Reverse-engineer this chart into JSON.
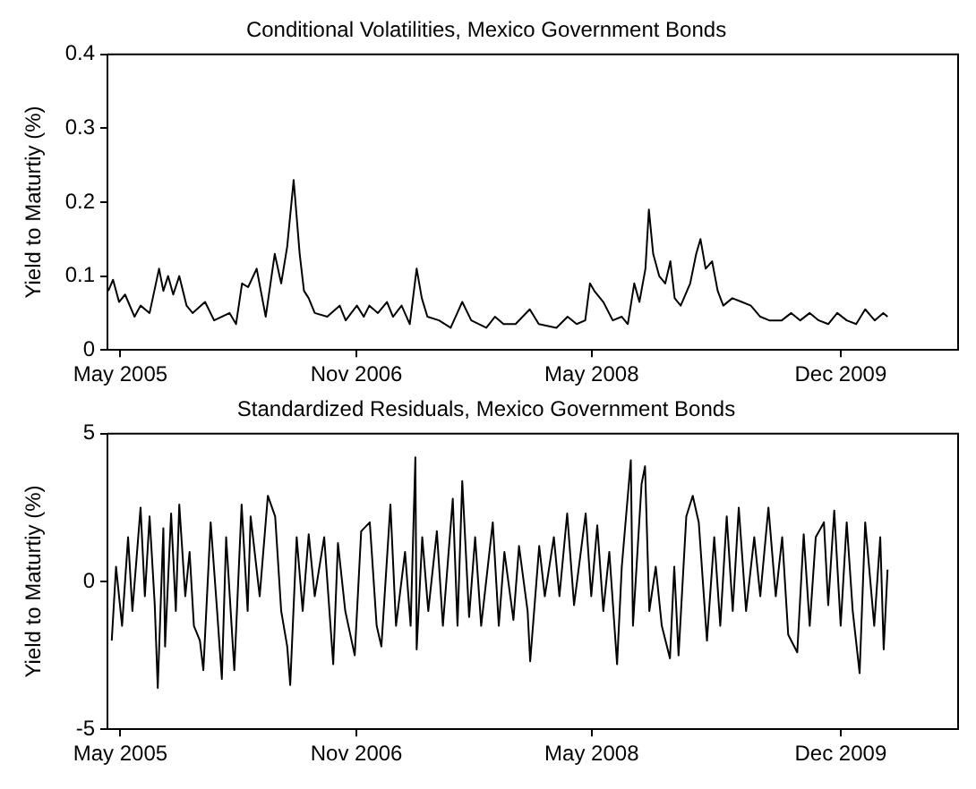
{
  "chart_data": [
    {
      "type": "line",
      "title": "Conditional Volatilities, Mexico Government Bonds",
      "ylabel": "Yield to Maturtiy (%)",
      "x": [
        "2005-04-03",
        "2005-04-14",
        "2005-04-28",
        "2005-05-12",
        "2005-06-03",
        "2005-06-17",
        "2005-07-08",
        "2005-07-30",
        "2005-08-09",
        "2005-08-20",
        "2005-09-01",
        "2005-09-15",
        "2005-10-02",
        "2005-10-16",
        "2005-11-14",
        "2005-12-05",
        "2006-01-10",
        "2006-01-25",
        "2006-02-08",
        "2006-02-22",
        "2006-03-14",
        "2006-04-04",
        "2006-04-25",
        "2006-05-10",
        "2006-05-24",
        "2006-06-08",
        "2006-06-22",
        "2006-07-02",
        "2006-07-13",
        "2006-07-27",
        "2006-08-25",
        "2006-09-23",
        "2006-10-07",
        "2006-11-02",
        "2006-11-18",
        "2006-12-01",
        "2006-12-21",
        "2007-01-11",
        "2007-01-25",
        "2007-02-14",
        "2007-03-05",
        "2007-03-21",
        "2007-04-02",
        "2007-04-15",
        "2007-05-12",
        "2007-06-08",
        "2007-07-05",
        "2007-07-26",
        "2007-08-30",
        "2007-09-19",
        "2007-10-09",
        "2007-11-06",
        "2007-12-09",
        "2007-12-30",
        "2008-02-09",
        "2008-03-06",
        "2008-03-27",
        "2008-04-16",
        "2008-04-27",
        "2008-05-07",
        "2008-05-28",
        "2008-06-19",
        "2008-07-10",
        "2008-07-24",
        "2008-08-08",
        "2008-08-20",
        "2008-09-03",
        "2008-09-11",
        "2008-09-21",
        "2008-10-05",
        "2008-10-19",
        "2008-10-31",
        "2008-11-10",
        "2008-11-24",
        "2008-12-16",
        "2008-12-30",
        "2009-01-09",
        "2009-01-21",
        "2009-02-05",
        "2009-02-18",
        "2009-03-03",
        "2009-03-24",
        "2009-04-15",
        "2009-05-06",
        "2009-05-28",
        "2009-06-18",
        "2009-07-17",
        "2009-08-08",
        "2009-08-29",
        "2009-09-20",
        "2009-10-11",
        "2009-11-02",
        "2009-11-23",
        "2009-12-15",
        "2010-01-06",
        "2010-01-27",
        "2010-02-18",
        "2010-03-10",
        "2010-03-20"
      ],
      "series": [
        {
          "color": "#000000",
          "values": [
            0.08,
            0.095,
            0.065,
            0.075,
            0.045,
            0.06,
            0.05,
            0.11,
            0.08,
            0.1,
            0.075,
            0.1,
            0.06,
            0.05,
            0.065,
            0.04,
            0.05,
            0.035,
            0.09,
            0.085,
            0.11,
            0.045,
            0.13,
            0.09,
            0.14,
            0.23,
            0.13,
            0.08,
            0.07,
            0.05,
            0.045,
            0.06,
            0.04,
            0.06,
            0.045,
            0.06,
            0.05,
            0.065,
            0.045,
            0.06,
            0.035,
            0.11,
            0.07,
            0.045,
            0.04,
            0.03,
            0.065,
            0.04,
            0.03,
            0.045,
            0.035,
            0.035,
            0.055,
            0.035,
            0.03,
            0.045,
            0.035,
            0.04,
            0.09,
            0.08,
            0.065,
            0.04,
            0.045,
            0.035,
            0.09,
            0.065,
            0.11,
            0.19,
            0.13,
            0.1,
            0.09,
            0.12,
            0.07,
            0.06,
            0.09,
            0.13,
            0.15,
            0.11,
            0.12,
            0.08,
            0.06,
            0.07,
            0.065,
            0.06,
            0.045,
            0.04,
            0.04,
            0.05,
            0.04,
            0.05,
            0.04,
            0.035,
            0.05,
            0.04,
            0.035,
            0.055,
            0.04,
            0.05,
            0.045
          ]
        }
      ],
      "xlim": [
        "2005-04-01",
        "2010-08-31"
      ],
      "xticks": [
        {
          "value": "2005-05-01",
          "label": "May 2005"
        },
        {
          "value": "2006-11-01",
          "label": "Nov 2006"
        },
        {
          "value": "2008-05-01",
          "label": "May 2008"
        },
        {
          "value": "2009-12-01",
          "label": "Dec 2009"
        }
      ],
      "ylim": [
        0,
        0.4
      ],
      "yticks": [
        0,
        0.1,
        0.2,
        0.3,
        0.4
      ],
      "grid": false
    },
    {
      "type": "line",
      "title": "Standardized Residuals, Mexico Government Bonds",
      "ylabel": "Yield to Maturtiy (%)",
      "x": [
        "2005-04-11",
        "2005-04-21",
        "2005-05-05",
        "2005-05-19",
        "2005-05-29",
        "2005-06-17",
        "2005-06-27",
        "2005-07-08",
        "2005-07-20",
        "2005-07-27",
        "2005-08-09",
        "2005-08-13",
        "2005-08-27",
        "2005-09-07",
        "2005-09-15",
        "2005-09-29",
        "2005-10-09",
        "2005-10-19",
        "2005-11-02",
        "2005-11-10",
        "2005-11-27",
        "2005-12-12",
        "2005-12-23",
        "2006-01-02",
        "2006-01-21",
        "2006-02-07",
        "2006-02-21",
        "2006-02-28",
        "2006-03-21",
        "2006-04-09",
        "2006-04-26",
        "2006-05-10",
        "2006-05-24",
        "2006-05-31",
        "2006-06-15",
        "2006-06-29",
        "2006-07-13",
        "2006-07-27",
        "2006-08-18",
        "2006-09-08",
        "2006-09-19",
        "2006-10-06",
        "2006-10-28",
        "2006-11-12",
        "2006-12-02",
        "2006-12-18",
        "2006-12-29",
        "2007-01-19",
        "2007-02-01",
        "2007-02-22",
        "2007-03-07",
        "2007-03-18",
        "2007-03-21",
        "2007-04-03",
        "2007-04-17",
        "2007-05-07",
        "2007-05-21",
        "2007-06-13",
        "2007-06-24",
        "2007-07-05",
        "2007-07-21",
        "2007-08-04",
        "2007-08-18",
        "2007-09-14",
        "2007-09-28",
        "2007-10-11",
        "2007-11-01",
        "2007-11-14",
        "2007-12-04",
        "2007-12-10",
        "2007-12-31",
        "2008-01-13",
        "2008-02-03",
        "2008-02-16",
        "2008-03-05",
        "2008-03-21",
        "2008-04-17",
        "2008-04-30",
        "2008-05-14",
        "2008-05-28",
        "2008-06-11",
        "2008-06-29",
        "2008-07-10",
        "2008-07-31",
        "2008-08-05",
        "2008-08-25",
        "2008-09-02",
        "2008-09-12",
        "2008-09-27",
        "2008-10-11",
        "2008-10-30",
        "2008-11-09",
        "2008-11-19",
        "2008-12-07",
        "2008-12-22",
        "2009-01-05",
        "2009-01-24",
        "2009-02-10",
        "2009-02-24",
        "2009-03-11",
        "2009-03-25",
        "2009-04-08",
        "2009-04-25",
        "2009-05-14",
        "2009-05-28",
        "2009-06-16",
        "2009-07-03",
        "2009-07-18",
        "2009-08-01",
        "2009-08-22",
        "2009-09-06",
        "2009-09-20",
        "2009-10-04",
        "2009-10-23",
        "2009-11-02",
        "2009-11-16",
        "2009-12-01",
        "2009-12-15",
        "2009-12-29",
        "2010-01-14",
        "2010-01-27",
        "2010-02-17",
        "2010-03-03",
        "2010-03-11",
        "2010-03-20"
      ],
      "series": [
        {
          "color": "#000000",
          "values": [
            -2.0,
            0.5,
            -1.5,
            1.5,
            -1.0,
            2.5,
            -0.5,
            2.2,
            -0.8,
            -3.6,
            1.8,
            -2.2,
            2.3,
            -1.0,
            2.6,
            -0.5,
            1.0,
            -1.5,
            -2.0,
            -3.0,
            2.0,
            -1.0,
            -3.3,
            1.5,
            -3.0,
            2.6,
            -1.0,
            2.2,
            -0.5,
            2.9,
            2.2,
            -1.0,
            -2.2,
            -3.5,
            1.5,
            -1.0,
            1.6,
            -0.5,
            1.5,
            -2.8,
            1.3,
            -1.0,
            -2.5,
            1.7,
            2.0,
            -1.5,
            -2.2,
            2.6,
            -1.5,
            1.0,
            -1.5,
            4.2,
            -2.3,
            1.5,
            -1.0,
            1.7,
            -1.5,
            2.8,
            -1.5,
            3.4,
            -1.2,
            1.5,
            -1.5,
            2.0,
            -1.5,
            1.0,
            -1.3,
            1.2,
            -1.0,
            -2.7,
            1.2,
            -0.5,
            1.5,
            -0.5,
            2.3,
            -0.8,
            2.3,
            -0.5,
            1.9,
            -1.0,
            1.0,
            -2.8,
            0.5,
            4.1,
            -1.5,
            3.3,
            3.9,
            -1.0,
            0.5,
            -1.5,
            -2.6,
            0.5,
            -2.5,
            2.2,
            2.9,
            2.0,
            -2.0,
            1.5,
            -1.5,
            2.2,
            -1.0,
            2.5,
            -1.0,
            1.5,
            -0.5,
            2.5,
            -0.5,
            1.5,
            -1.8,
            -2.4,
            1.6,
            -1.5,
            1.5,
            2.0,
            -0.8,
            2.4,
            -1.5,
            2.0,
            -1.0,
            -3.1,
            2.0,
            -1.5,
            1.5,
            -2.3,
            0.4
          ]
        }
      ],
      "xlim": [
        "2005-04-01",
        "2010-08-31"
      ],
      "xticks": [
        {
          "value": "2005-05-01",
          "label": "May 2005"
        },
        {
          "value": "2006-11-01",
          "label": "Nov 2006"
        },
        {
          "value": "2008-05-01",
          "label": "May 2008"
        },
        {
          "value": "2009-12-01",
          "label": "Dec 2009"
        }
      ],
      "ylim": [
        -5,
        5
      ],
      "yticks": [
        -5,
        0,
        5
      ],
      "grid": false
    }
  ]
}
